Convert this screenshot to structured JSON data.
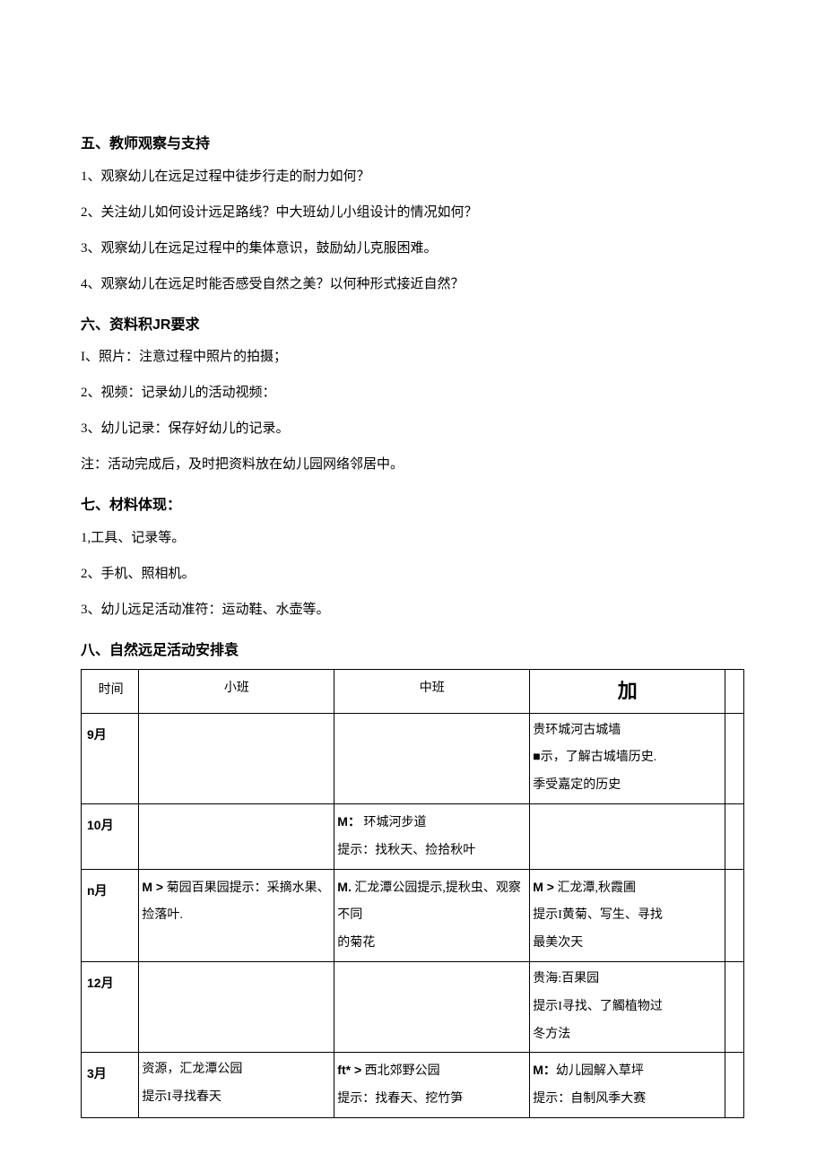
{
  "section5": {
    "heading": "五、教师观察与支持",
    "items": [
      "1、观察幼儿在远足过程中徒步行走的耐力如何？",
      "2、关注幼儿如何设计远足路线？中大班幼儿小组设计的情况如何？",
      "3、观察幼儿在远足过程中的集体意识，鼓励幼儿克服困难。",
      "4、观察幼儿在远足时能否感受自然之美？以何种形式接近自然？"
    ]
  },
  "section6": {
    "heading": "六、资料积JR要求",
    "items": [
      "I、照片：注意过程中照片的拍摄；",
      "2、视频：记录幼儿的活动视频：",
      "3、幼儿记录：保存好幼儿的记录。",
      "注：活动完成后，及时把资料放在幼儿园网络邻居中。"
    ]
  },
  "section7": {
    "heading": "七、材料体现：",
    "items": [
      "1,工具、记录等。",
      "2、手机、照相机。",
      "3、幼儿远足活动准符：运动鞋、水壶等。"
    ]
  },
  "section8": {
    "heading": "八、自然远足活动安排袁",
    "table": {
      "headers": {
        "time": "时间",
        "small": "小班",
        "middle": "中班",
        "large": "加"
      },
      "rows": [
        {
          "time": "9月",
          "small": "",
          "middle": "",
          "large": "贵环城河古城墙\n■示，了解古城墙历史.\n季受嘉定的历史"
        },
        {
          "time": "10月",
          "small": "",
          "middle": "M：   环城河步道\n提示：找秋天、捡拾秋叶",
          "large": ""
        },
        {
          "time": "n月",
          "small": "M > 菊园百果园提示：采摘水果、捡落叶.",
          "middle": "M. 汇龙潭公园提示,提秋虫、观察不同\n的菊花",
          "large": "M > 汇龙潭,秋霞圃\n提示I黄菊、写生、寻找\n最美次天"
        },
        {
          "time": "12月",
          "small": "",
          "middle": "",
          "large": "贵海:百果园\n提示I寻找、了觸植物过\n冬方法"
        },
        {
          "time": "3月",
          "small": "资源，汇龙潭公园\n提示I寻找春天",
          "middle": "ft* > 西北郊野公园\n提示：找春天、挖竹笋",
          "large": "M：幼儿园解入草坪\n提示：自制风季大赛"
        }
      ]
    }
  }
}
